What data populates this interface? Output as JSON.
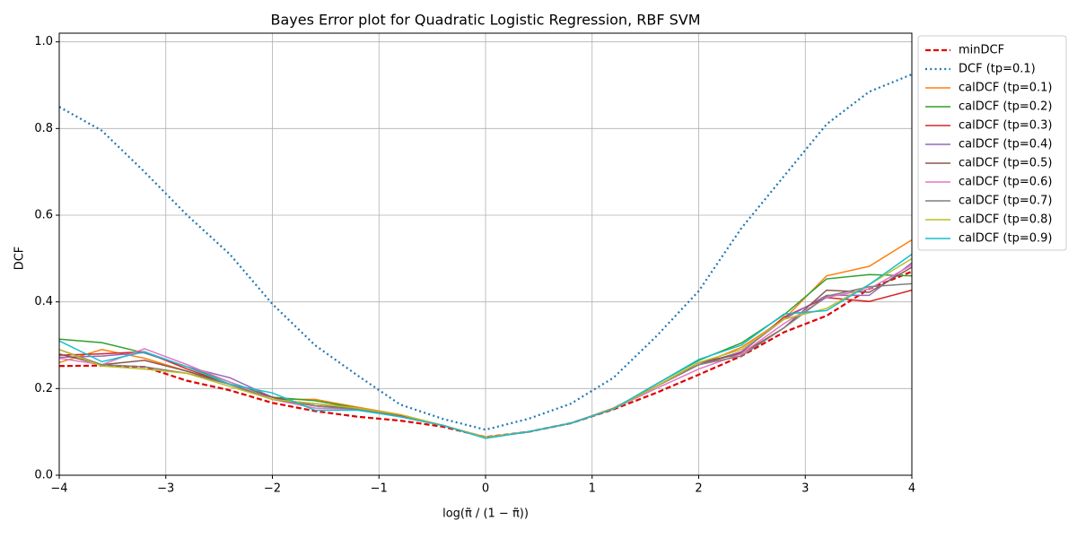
{
  "chart_data": {
    "type": "line",
    "title": "Bayes Error plot for Quadratic Logistic Regression, RBF SVM",
    "xlabel": "log(π̃ / (1 − π̃))",
    "ylabel": "DCF",
    "x": [
      -4,
      -3.6,
      -3.2,
      -2.8,
      -2.4,
      -2,
      -1.6,
      -1.2,
      -0.8,
      -0.4,
      0,
      0.4,
      0.8,
      1.2,
      1.6,
      2,
      2.4,
      2.8,
      3.2,
      3.6,
      4
    ],
    "xlim": [
      -4,
      4
    ],
    "xticks": [
      {
        "value": -4,
        "label": "−4"
      },
      {
        "value": -3,
        "label": "−3"
      },
      {
        "value": -2,
        "label": "−2"
      },
      {
        "value": -1,
        "label": "−1"
      },
      0,
      1,
      2,
      3,
      4
    ],
    "ylim": [
      0,
      1.02
    ],
    "yticks": [
      {
        "value": 0,
        "label": "0.0"
      },
      {
        "value": 0.2,
        "label": "0.2"
      },
      {
        "value": 0.4,
        "label": "0.4"
      },
      {
        "value": 0.6,
        "label": "0.6"
      },
      {
        "value": 0.8,
        "label": "0.8"
      },
      {
        "value": 1,
        "label": "1.0"
      }
    ],
    "grid": true,
    "legend": "outside upper right",
    "series": [
      {
        "name": "minDCF",
        "color": "#e00000",
        "linestyle": "dashed",
        "values": [
          0.252,
          0.253,
          0.25,
          0.218,
          0.196,
          0.167,
          0.148,
          0.135,
          0.126,
          0.112,
          0.088,
          0.1,
          0.12,
          0.152,
          0.19,
          0.232,
          0.275,
          0.33,
          0.368,
          0.43,
          0.47
        ]
      },
      {
        "name": "DCF (tp=0.1)",
        "color": "#1f77b4",
        "linestyle": "dotted",
        "values": [
          0.85,
          0.795,
          0.7,
          0.6,
          0.51,
          0.395,
          0.3,
          0.23,
          0.163,
          0.13,
          0.105,
          0.13,
          0.165,
          0.225,
          0.32,
          0.425,
          0.57,
          0.69,
          0.81,
          0.885,
          0.925
        ]
      },
      {
        "name": "calDCF (tp=0.1)",
        "color": "#ff7f0e",
        "linestyle": "solid",
        "values": [
          0.26,
          0.29,
          0.27,
          0.24,
          0.21,
          0.175,
          0.175,
          0.157,
          0.14,
          0.115,
          0.088,
          0.1,
          0.12,
          0.155,
          0.205,
          0.255,
          0.295,
          0.36,
          0.46,
          0.482,
          0.543
        ]
      },
      {
        "name": "calDCF (tp=0.2)",
        "color": "#2ca02c",
        "linestyle": "solid",
        "values": [
          0.314,
          0.306,
          0.282,
          0.25,
          0.215,
          0.18,
          0.172,
          0.155,
          0.138,
          0.115,
          0.087,
          0.1,
          0.12,
          0.153,
          0.21,
          0.265,
          0.305,
          0.37,
          0.453,
          0.463,
          0.46
        ]
      },
      {
        "name": "calDCF (tp=0.3)",
        "color": "#d62728",
        "linestyle": "solid",
        "values": [
          0.277,
          0.28,
          0.285,
          0.245,
          0.21,
          0.175,
          0.165,
          0.155,
          0.138,
          0.115,
          0.087,
          0.1,
          0.12,
          0.153,
          0.205,
          0.255,
          0.283,
          0.365,
          0.41,
          0.401,
          0.427
        ]
      },
      {
        "name": "calDCF (tp=0.4)",
        "color": "#9467bd",
        "linestyle": "solid",
        "values": [
          0.272,
          0.275,
          0.283,
          0.25,
          0.225,
          0.18,
          0.16,
          0.152,
          0.135,
          0.115,
          0.087,
          0.1,
          0.12,
          0.153,
          0.205,
          0.255,
          0.285,
          0.36,
          0.415,
          0.415,
          0.49
        ]
      },
      {
        "name": "calDCF (tp=0.5)",
        "color": "#8c564b",
        "linestyle": "solid",
        "values": [
          0.28,
          0.255,
          0.265,
          0.24,
          0.21,
          0.18,
          0.16,
          0.155,
          0.135,
          0.115,
          0.087,
          0.1,
          0.12,
          0.153,
          0.205,
          0.26,
          0.28,
          0.34,
          0.427,
          0.422,
          0.48
        ]
      },
      {
        "name": "calDCF (tp=0.6)",
        "color": "#e377c2",
        "linestyle": "solid",
        "values": [
          0.27,
          0.255,
          0.292,
          0.255,
          0.215,
          0.175,
          0.155,
          0.152,
          0.135,
          0.115,
          0.087,
          0.1,
          0.12,
          0.153,
          0.2,
          0.245,
          0.28,
          0.35,
          0.41,
          0.43,
          0.485
        ]
      },
      {
        "name": "calDCF (tp=0.7)",
        "color": "#7f7f7f",
        "linestyle": "solid",
        "values": [
          0.29,
          0.255,
          0.25,
          0.235,
          0.21,
          0.175,
          0.16,
          0.152,
          0.135,
          0.115,
          0.087,
          0.1,
          0.12,
          0.153,
          0.205,
          0.255,
          0.275,
          0.34,
          0.413,
          0.435,
          0.442
        ]
      },
      {
        "name": "calDCF (tp=0.8)",
        "color": "#bcbd22",
        "linestyle": "solid",
        "values": [
          0.29,
          0.252,
          0.245,
          0.235,
          0.205,
          0.175,
          0.165,
          0.155,
          0.14,
          0.115,
          0.087,
          0.1,
          0.12,
          0.153,
          0.205,
          0.26,
          0.29,
          0.36,
          0.385,
          0.44,
          0.5
        ]
      },
      {
        "name": "calDCF (tp=0.9)",
        "color": "#17becf",
        "linestyle": "solid",
        "values": [
          0.31,
          0.262,
          0.285,
          0.25,
          0.21,
          0.19,
          0.15,
          0.15,
          0.135,
          0.115,
          0.085,
          0.1,
          0.12,
          0.153,
          0.21,
          0.267,
          0.3,
          0.372,
          0.38,
          0.44,
          0.51
        ]
      }
    ]
  }
}
